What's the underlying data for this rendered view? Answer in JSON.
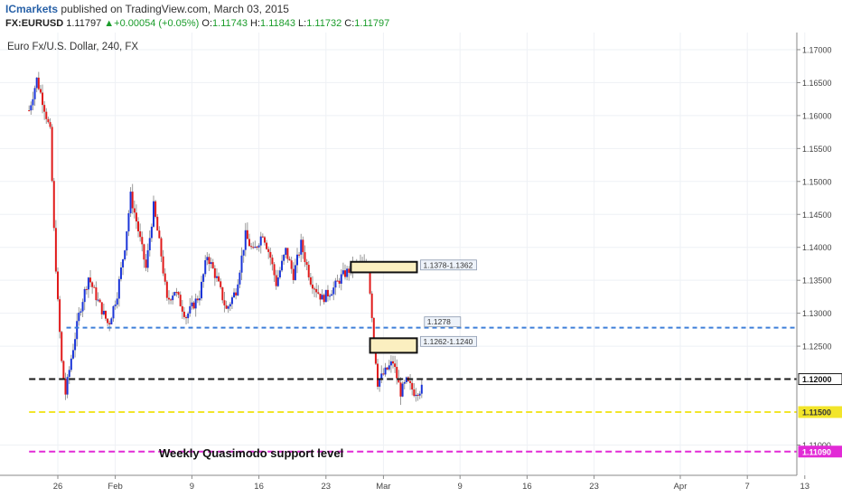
{
  "header": {
    "publisher": "ICmarkets",
    "published_text": "published on TradingView.com, March 03, 2015",
    "symbol": "FX:EURUSD",
    "last": "1.11797",
    "change_arrow": "▲",
    "change": "+0.00054 (+0.05%)",
    "o_label": "O:",
    "o_value": "1.11743",
    "h_label": "H:",
    "h_value": "1.11843",
    "l_label": "L:",
    "l_value": "1.11732",
    "c_label": "C:",
    "c_value": "1.11797"
  },
  "chart_data": {
    "type": "candlestick",
    "title": "Euro Fx/U.S. Dollar, 240, FX",
    "ylim": [
      1.1054,
      1.1726
    ],
    "y_ticks": [
      {
        "value": 1.17,
        "label": "1.17000"
      },
      {
        "value": 1.165,
        "label": "1.16500"
      },
      {
        "value": 1.16,
        "label": "1.16000"
      },
      {
        "value": 1.155,
        "label": "1.15500"
      },
      {
        "value": 1.15,
        "label": "1.15000"
      },
      {
        "value": 1.145,
        "label": "1.14500"
      },
      {
        "value": 1.14,
        "label": "1.14000"
      },
      {
        "value": 1.135,
        "label": "1.13500"
      },
      {
        "value": 1.13,
        "label": "1.13000"
      },
      {
        "value": 1.125,
        "label": "1.12500"
      },
      {
        "value": 1.11,
        "label": "1.11000"
      }
    ],
    "x_ticks": [
      {
        "label": "26",
        "day": 0
      },
      {
        "label": "Feb",
        "day": 6
      },
      {
        "label": "9",
        "day": 14
      },
      {
        "label": "16",
        "day": 21
      },
      {
        "label": "23",
        "day": 28
      },
      {
        "label": "Mar",
        "day": 34
      },
      {
        "label": "9",
        "day": 42
      },
      {
        "label": "16",
        "day": 49
      },
      {
        "label": "23",
        "day": 56
      },
      {
        "label": "Apr",
        "day": 65
      },
      {
        "label": "7",
        "day": 72
      },
      {
        "label": "13",
        "day": 78
      }
    ],
    "price_path": [
      [
        -3,
        1.1608
      ],
      [
        -2.2,
        1.1655
      ],
      [
        -1.5,
        1.1618
      ],
      [
        -0.8,
        1.1575
      ],
      [
        -0.4,
        1.1425
      ],
      [
        0,
        1.1315
      ],
      [
        0.4,
        1.1225
      ],
      [
        0.8,
        1.1178
      ],
      [
        1.4,
        1.1232
      ],
      [
        2.3,
        1.1305
      ],
      [
        3.2,
        1.1355
      ],
      [
        4.2,
        1.1318
      ],
      [
        5.3,
        1.1282
      ],
      [
        6.2,
        1.133
      ],
      [
        7,
        1.1402
      ],
      [
        7.6,
        1.1478
      ],
      [
        8.2,
        1.144
      ],
      [
        9.2,
        1.1368
      ],
      [
        10,
        1.1462
      ],
      [
        10.8,
        1.1388
      ],
      [
        11.4,
        1.1318
      ],
      [
        12.2,
        1.1335
      ],
      [
        13.4,
        1.1295
      ],
      [
        14.8,
        1.1328
      ],
      [
        15.6,
        1.1388
      ],
      [
        16.6,
        1.1352
      ],
      [
        17.6,
        1.1305
      ],
      [
        18.6,
        1.1335
      ],
      [
        19.6,
        1.1418
      ],
      [
        20.4,
        1.1392
      ],
      [
        21.4,
        1.1422
      ],
      [
        22.2,
        1.1385
      ],
      [
        22.8,
        1.1345
      ],
      [
        23.8,
        1.1395
      ],
      [
        24.6,
        1.1358
      ],
      [
        25.4,
        1.1405
      ],
      [
        26.4,
        1.135
      ],
      [
        27.6,
        1.1322
      ],
      [
        28.8,
        1.1338
      ],
      [
        29.6,
        1.1355
      ],
      [
        30.6,
        1.1368
      ],
      [
        31.6,
        1.1374
      ],
      [
        32.4,
        1.137
      ],
      [
        33,
        1.1262
      ],
      [
        33.4,
        1.1195
      ],
      [
        34.4,
        1.1215
      ],
      [
        35,
        1.1226
      ],
      [
        35.8,
        1.118
      ],
      [
        36.4,
        1.1196
      ],
      [
        37.2,
        1.1181
      ],
      [
        38,
        1.1185
      ]
    ],
    "levels": [
      {
        "value": 1.1278,
        "color": "#3d7fd9",
        "dash": "5,4",
        "label": "1.1278",
        "x_from": 0.9,
        "label_day": 38
      },
      {
        "value": 1.12,
        "color": "#1a1a1a",
        "dash": "7,4",
        "label": "1.12000",
        "x_from": -3
      },
      {
        "value": 1.115,
        "color": "#f2e52a",
        "dash": "7,4",
        "label": "1.11500",
        "x_from": -3
      },
      {
        "value": 1.109,
        "color": "#e22ad6",
        "dash": "7,4",
        "label": "1.11090",
        "x_from": -3
      }
    ],
    "zones": [
      {
        "from": 1.1362,
        "to": 1.1378,
        "x_from": 30.6,
        "x_to": 37.5,
        "label": "1.1378-1.1362"
      },
      {
        "from": 1.124,
        "to": 1.1262,
        "x_from": 32.6,
        "x_to": 37.5,
        "label": "1.1262-1.1240"
      }
    ],
    "annotation": "Weekly Quasimodo support level",
    "colors": {
      "up": "#1b35d8",
      "down": "#e01a1a",
      "grid": "#eef1f5",
      "zone_fill": "#fbefc0"
    }
  }
}
